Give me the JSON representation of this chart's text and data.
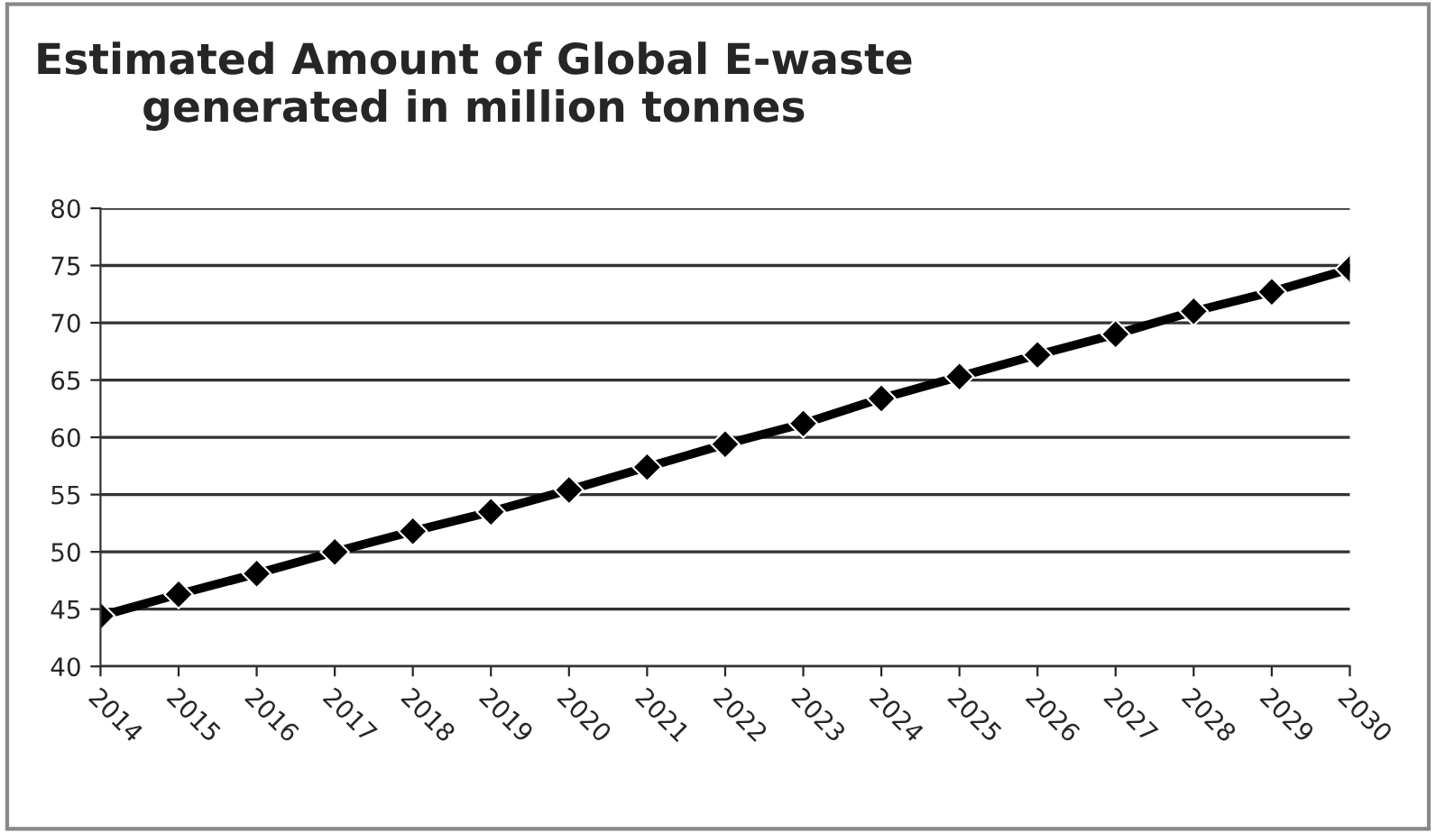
{
  "chart_data": {
    "type": "line",
    "title": "Estimated Amount of Global E-waste\ngenerated in million tonnes",
    "categories": [
      "2014",
      "2015",
      "2016",
      "2017",
      "2018",
      "2019",
      "2020",
      "2021",
      "2022",
      "2023",
      "2024",
      "2025",
      "2026",
      "2027",
      "2028",
      "2029",
      "2030"
    ],
    "series": [
      {
        "color": "#000000",
        "values": [
          44.4,
          46.3,
          48.1,
          50.0,
          51.8,
          53.5,
          55.4,
          57.4,
          59.4,
          61.2,
          63.4,
          65.3,
          67.2,
          69.0,
          71.0,
          72.7,
          74.7
        ]
      }
    ],
    "ylim": [
      40,
      80
    ],
    "yticks": [
      40,
      45,
      50,
      55,
      60,
      65,
      70,
      75,
      80
    ],
    "grid": "y",
    "marker": "diamond",
    "line_style": "solid",
    "legend": false
  }
}
